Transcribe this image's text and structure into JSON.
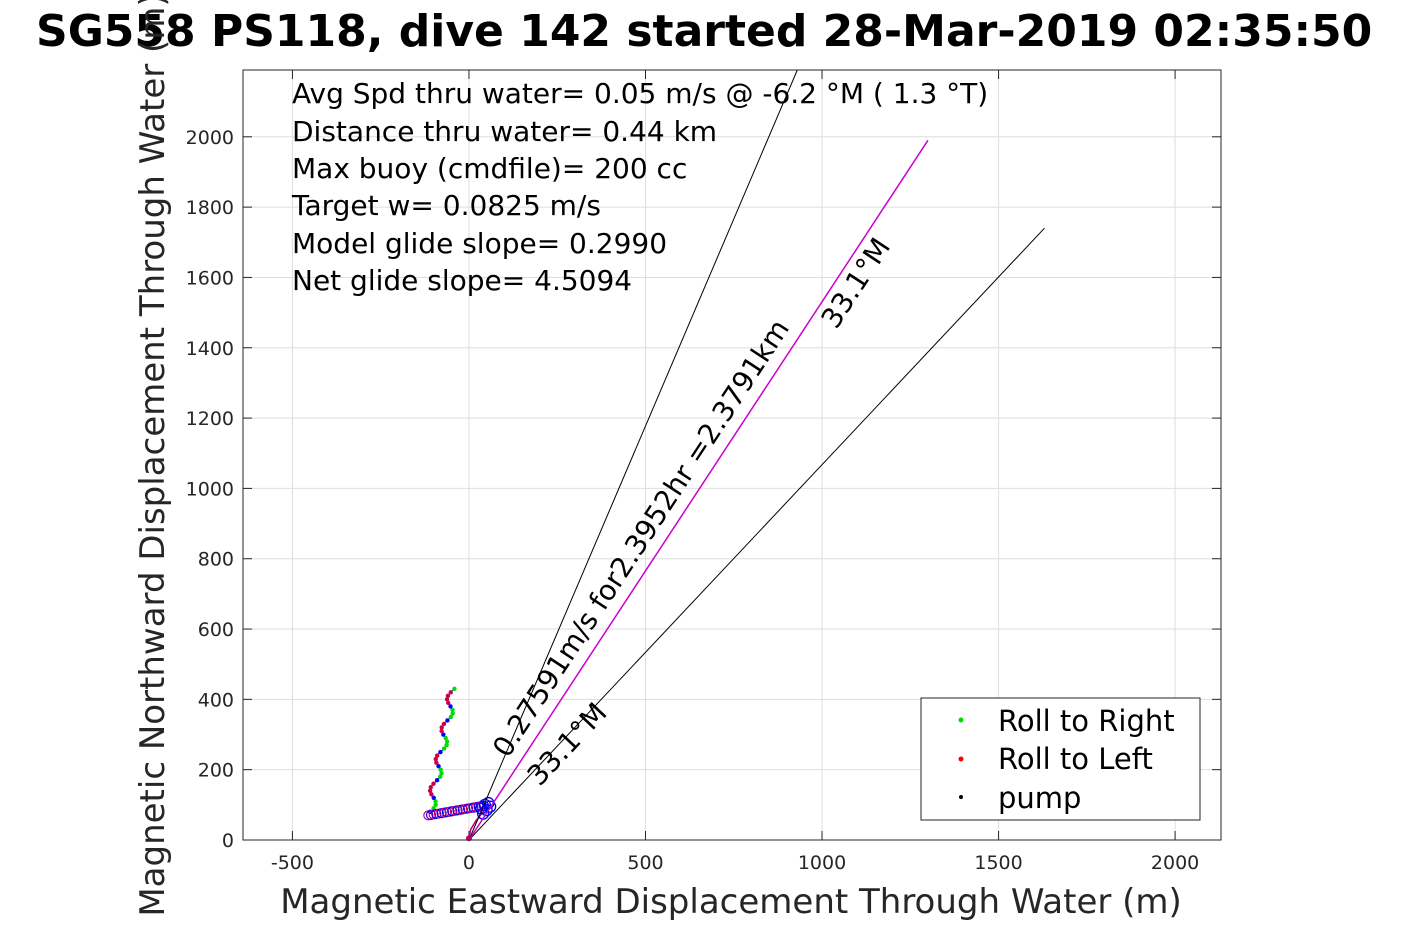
{
  "chart_data": {
    "type": "line",
    "title": "SG558 PS118, dive 142 started 28-Mar-2019 02:35:50",
    "xlabel": "Magnetic Eastward Displacement Through Water (m)",
    "ylabel": "Magnetic Northward Displacement Through Water (m)",
    "xlim": [
      -640,
      2130
    ],
    "ylim": [
      0,
      2190
    ],
    "xticks": [
      -500,
      0,
      500,
      1000,
      1500,
      2000
    ],
    "yticks": [
      0,
      200,
      400,
      600,
      800,
      1000,
      1200,
      1400,
      1600,
      1800,
      2000
    ],
    "grid": true,
    "info_lines": [
      "Avg Spd thru water=  0.05 m/s @  -6.2 °M (  1.3 °T)",
      "Distance thru water=  0.44 km",
      "Max buoy (cmdfile)= 200 cc",
      "Target w= 0.0825 m/s",
      "Model glide slope= 0.2990",
      "Net glide slope= 4.5094"
    ],
    "lines": [
      {
        "color": "#000000",
        "x": [
          0,
          930
        ],
        "y": [
          0,
          2190
        ]
      },
      {
        "color": "#000000",
        "x": [
          0,
          1630
        ],
        "y": [
          0,
          1740
        ]
      },
      {
        "color": "#cc00cc",
        "x": [
          0,
          1300
        ],
        "y": [
          0,
          1990
        ]
      }
    ],
    "annotations": [
      {
        "text": "0.27591m/s for2.3952hr =2.3791km",
        "x": 110,
        "y": 230,
        "angle": -56.8
      },
      {
        "text": "33.1°M",
        "x": 1040,
        "y": 1450,
        "angle": -56.8
      },
      {
        "text": "33.1°M",
        "x": 200,
        "y": 150,
        "angle": -46.8
      }
    ],
    "legend": {
      "position": "bottom-right",
      "entries": [
        {
          "label": "Roll to Right",
          "color": "#00dd00"
        },
        {
          "label": "Roll to Left",
          "color": "#ff0000"
        },
        {
          "label": "pump",
          "color": "#000000"
        }
      ]
    }
  }
}
